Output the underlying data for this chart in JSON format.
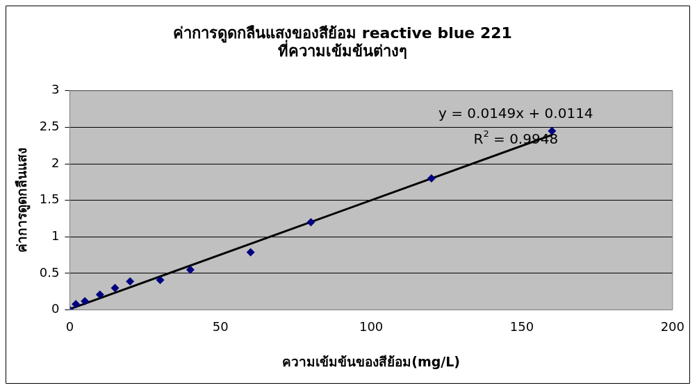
{
  "chart_data": {
    "type": "scatter",
    "title": "ค่าการดูดกลืนแสงของสีย้อม reactive blue 221\nที่ความเข้มข้นต่างๆ",
    "xlabel": "ความเข้มข้นของสีย้อม(mg/L)",
    "ylabel": "ค่าการดูดกลืนแสง",
    "x": [
      0,
      2,
      5,
      10,
      15,
      20,
      30,
      40,
      60,
      80,
      120,
      160
    ],
    "series": [
      {
        "color": "#000080",
        "values": [
          0,
          0.08,
          0.12,
          0.21,
          0.3,
          0.39,
          0.41,
          0.55,
          0.79,
          1.2,
          1.8,
          2.45
        ],
        "marker": "diamond"
      },
      {
        "type": "line",
        "color": "#000000",
        "x": [
          0,
          160
        ],
        "values": [
          0.0114,
          2.3954
        ],
        "marker": "none"
      }
    ],
    "xlim": [
      0,
      200
    ],
    "xticks": [
      0,
      50,
      100,
      150,
      200
    ],
    "ylim": [
      0,
      3
    ],
    "yticks": [
      0,
      0.5,
      1,
      1.5,
      2,
      2.5,
      3
    ],
    "grid": "y",
    "legend": false,
    "annotations": [
      "y = 0.0149x + 0.0114",
      "R$^{2}$ = 0.9948"
    ]
  }
}
